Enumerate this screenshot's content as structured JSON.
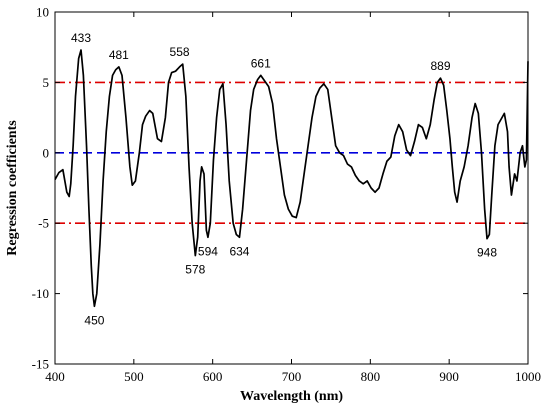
{
  "chart_data": {
    "type": "line",
    "title": "",
    "xlabel": "Wavelength (nm)",
    "ylabel": "Regression coefficients",
    "xlim": [
      400,
      1000
    ],
    "ylim": [
      -15,
      10
    ],
    "x_ticks": [
      400,
      500,
      600,
      700,
      800,
      900,
      1000
    ],
    "y_ticks": [
      -15,
      -10,
      -5,
      0,
      5,
      10
    ],
    "grid": false,
    "reference_lines": [
      {
        "y": 5,
        "color": "#dd0000",
        "style": "dash-dot"
      },
      {
        "y": 0,
        "color": "#0000dd",
        "style": "dashed"
      },
      {
        "y": -5,
        "color": "#dd0000",
        "style": "dash-dot"
      }
    ],
    "series": [
      {
        "color": "#000000",
        "points": [
          [
            400,
            -1.9
          ],
          [
            405,
            -1.4
          ],
          [
            410,
            -1.2
          ],
          [
            415,
            -2.8
          ],
          [
            418,
            -3.1
          ],
          [
            420,
            -2.2
          ],
          [
            423,
            0.5
          ],
          [
            426,
            4.0
          ],
          [
            430,
            6.7
          ],
          [
            433,
            7.3
          ],
          [
            436,
            5.5
          ],
          [
            440,
            0.5
          ],
          [
            443,
            -4.0
          ],
          [
            446,
            -8.0
          ],
          [
            448,
            -10.0
          ],
          [
            450,
            -10.9
          ],
          [
            453,
            -10.0
          ],
          [
            457,
            -6.5
          ],
          [
            461,
            -2.0
          ],
          [
            465,
            1.5
          ],
          [
            469,
            4.0
          ],
          [
            473,
            5.5
          ],
          [
            477,
            5.9
          ],
          [
            481,
            6.1
          ],
          [
            485,
            5.5
          ],
          [
            490,
            2.5
          ],
          [
            495,
            -1.0
          ],
          [
            498,
            -2.3
          ],
          [
            502,
            -2.0
          ],
          [
            507,
            0.0
          ],
          [
            511,
            2.0
          ],
          [
            515,
            2.6
          ],
          [
            520,
            3.0
          ],
          [
            524,
            2.8
          ],
          [
            530,
            1.0
          ],
          [
            535,
            0.8
          ],
          [
            540,
            2.5
          ],
          [
            544,
            5.0
          ],
          [
            548,
            5.7
          ],
          [
            553,
            5.8
          ],
          [
            558,
            6.1
          ],
          [
            562,
            6.3
          ],
          [
            566,
            4.0
          ],
          [
            570,
            -1.0
          ],
          [
            574,
            -5.0
          ],
          [
            578,
            -7.3
          ],
          [
            581,
            -6.0
          ],
          [
            584,
            -2.0
          ],
          [
            586,
            -1.0
          ],
          [
            589,
            -1.5
          ],
          [
            592,
            -5.5
          ],
          [
            594,
            -6.0
          ],
          [
            597,
            -5.0
          ],
          [
            601,
            -0.5
          ],
          [
            605,
            2.5
          ],
          [
            609,
            4.5
          ],
          [
            613,
            4.9
          ],
          [
            617,
            2.0
          ],
          [
            621,
            -2.0
          ],
          [
            626,
            -5.0
          ],
          [
            630,
            -5.8
          ],
          [
            634,
            -6.0
          ],
          [
            638,
            -4.0
          ],
          [
            643,
            -0.5
          ],
          [
            648,
            3.0
          ],
          [
            652,
            4.5
          ],
          [
            657,
            5.2
          ],
          [
            661,
            5.5
          ],
          [
            666,
            5.1
          ],
          [
            671,
            4.7
          ],
          [
            676,
            3.5
          ],
          [
            681,
            1.0
          ],
          [
            686,
            -1.0
          ],
          [
            691,
            -3.0
          ],
          [
            696,
            -4.0
          ],
          [
            701,
            -4.5
          ],
          [
            706,
            -4.6
          ],
          [
            711,
            -3.5
          ],
          [
            716,
            -1.5
          ],
          [
            721,
            0.5
          ],
          [
            726,
            2.5
          ],
          [
            731,
            4.0
          ],
          [
            736,
            4.6
          ],
          [
            741,
            4.9
          ],
          [
            746,
            4.5
          ],
          [
            751,
            2.5
          ],
          [
            756,
            0.5
          ],
          [
            761,
            0.0
          ],
          [
            766,
            -0.2
          ],
          [
            771,
            -0.8
          ],
          [
            776,
            -1.0
          ],
          [
            781,
            -1.6
          ],
          [
            786,
            -2.0
          ],
          [
            791,
            -2.2
          ],
          [
            796,
            -2.0
          ],
          [
            801,
            -2.5
          ],
          [
            806,
            -2.8
          ],
          [
            811,
            -2.5
          ],
          [
            816,
            -1.5
          ],
          [
            821,
            -0.6
          ],
          [
            826,
            -0.3
          ],
          [
            831,
            1.2
          ],
          [
            836,
            2.0
          ],
          [
            841,
            1.5
          ],
          [
            846,
            0.2
          ],
          [
            851,
            -0.2
          ],
          [
            856,
            0.8
          ],
          [
            861,
            2.0
          ],
          [
            866,
            1.8
          ],
          [
            871,
            1.0
          ],
          [
            876,
            2.0
          ],
          [
            881,
            3.8
          ],
          [
            885,
            5.0
          ],
          [
            889,
            5.3
          ],
          [
            893,
            4.8
          ],
          [
            897,
            3.0
          ],
          [
            901,
            1.0
          ],
          [
            904,
            -1.0
          ],
          [
            907,
            -2.8
          ],
          [
            910,
            -3.5
          ],
          [
            914,
            -2.0
          ],
          [
            919,
            -1.0
          ],
          [
            924,
            0.5
          ],
          [
            929,
            2.5
          ],
          [
            933,
            3.5
          ],
          [
            937,
            2.8
          ],
          [
            941,
            0.0
          ],
          [
            945,
            -4.0
          ],
          [
            948,
            -6.1
          ],
          [
            951,
            -5.8
          ],
          [
            954,
            -3.0
          ],
          [
            958,
            0.5
          ],
          [
            962,
            2.0
          ],
          [
            966,
            2.4
          ],
          [
            970,
            2.8
          ],
          [
            974,
            1.5
          ],
          [
            976,
            -1.0
          ],
          [
            979,
            -3.0
          ],
          [
            983,
            -1.5
          ],
          [
            986,
            -2.0
          ],
          [
            990,
            0.0
          ],
          [
            993,
            0.5
          ],
          [
            996,
            -1.0
          ],
          [
            998,
            -0.5
          ],
          [
            1000,
            6.5
          ]
        ]
      }
    ],
    "annotations": [
      {
        "text": "433",
        "x": 433,
        "y": 7.3,
        "position": "above"
      },
      {
        "text": "481",
        "x": 481,
        "y": 6.1,
        "position": "above"
      },
      {
        "text": "558",
        "x": 558,
        "y": 6.3,
        "position": "above"
      },
      {
        "text": "661",
        "x": 661,
        "y": 5.5,
        "position": "above"
      },
      {
        "text": "889",
        "x": 889,
        "y": 5.3,
        "position": "above"
      },
      {
        "text": "450",
        "x": 450,
        "y": -10.9,
        "position": "below"
      },
      {
        "text": "578",
        "x": 578,
        "y": -7.3,
        "position": "below"
      },
      {
        "text": "594",
        "x": 594,
        "y": -6.0,
        "position": "below"
      },
      {
        "text": "634",
        "x": 634,
        "y": -6.0,
        "position": "below"
      },
      {
        "text": "948",
        "x": 948,
        "y": -6.1,
        "position": "below"
      }
    ]
  }
}
